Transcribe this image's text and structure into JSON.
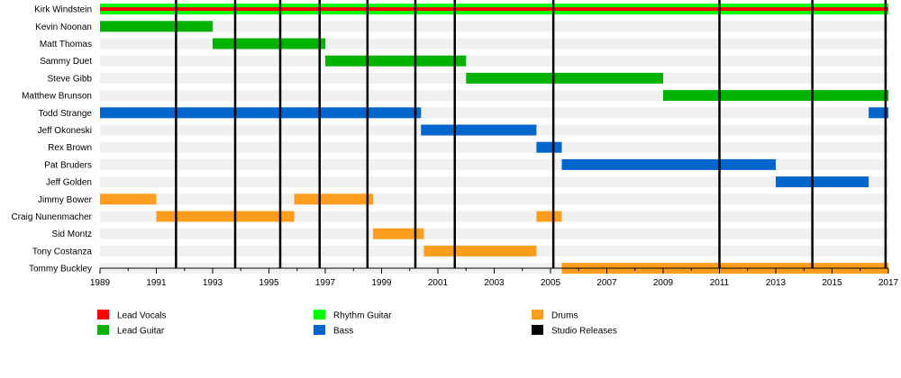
{
  "chart_data": {
    "type": "timeline",
    "x_range": [
      1989,
      2017
    ],
    "x_ticks": [
      "1989",
      "1991",
      "1993",
      "1995",
      "1997",
      "1999",
      "2001",
      "2003",
      "2005",
      "2007",
      "2009",
      "2011",
      "2013",
      "2015",
      "2017"
    ],
    "colors": {
      "Lead Vocals": "#ff0000",
      "Rhythm Guitar": "#00ff00",
      "Drums": "#ff9e1c",
      "Lead Guitar": "#00b300",
      "Bass": "#0066cc",
      "Studio Releases": "#000000"
    },
    "members": [
      {
        "name": "Kirk Windstein",
        "bars": [
          {
            "start": 1989,
            "end": 2017,
            "role": "Rhythm Guitar"
          },
          {
            "start": 1989,
            "end": 2017,
            "role": "Lead Vocals",
            "thin": true
          }
        ]
      },
      {
        "name": "Kevin Noonan",
        "bars": [
          {
            "start": 1989,
            "end": 1993,
            "role": "Lead Guitar"
          }
        ]
      },
      {
        "name": "Matt Thomas",
        "bars": [
          {
            "start": 1993,
            "end": 1997,
            "role": "Lead Guitar"
          }
        ]
      },
      {
        "name": "Sammy Duet",
        "bars": [
          {
            "start": 1997,
            "end": 2002,
            "role": "Lead Guitar"
          }
        ]
      },
      {
        "name": "Steve Gibb",
        "bars": [
          {
            "start": 2002,
            "end": 2009,
            "role": "Lead Guitar"
          }
        ]
      },
      {
        "name": "Matthew Brunson",
        "bars": [
          {
            "start": 2009,
            "end": 2017,
            "role": "Lead Guitar"
          }
        ]
      },
      {
        "name": "Todd Strange",
        "bars": [
          {
            "start": 1989,
            "end": 2000.4,
            "role": "Bass"
          },
          {
            "start": 2016.3,
            "end": 2017,
            "role": "Bass"
          }
        ]
      },
      {
        "name": "Jeff Okoneski",
        "bars": [
          {
            "start": 2000.4,
            "end": 2004.5,
            "role": "Bass"
          }
        ]
      },
      {
        "name": "Rex Brown",
        "bars": [
          {
            "start": 2004.5,
            "end": 2005.4,
            "role": "Bass"
          }
        ]
      },
      {
        "name": "Pat Bruders",
        "bars": [
          {
            "start": 2005.4,
            "end": 2013,
            "role": "Bass"
          }
        ]
      },
      {
        "name": "Jeff Golden",
        "bars": [
          {
            "start": 2013,
            "end": 2016.3,
            "role": "Bass"
          }
        ]
      },
      {
        "name": "Jimmy Bower",
        "bars": [
          {
            "start": 1989,
            "end": 1991,
            "role": "Drums"
          },
          {
            "start": 1995.9,
            "end": 1998.7,
            "role": "Drums"
          }
        ]
      },
      {
        "name": "Craig Nunenmacher",
        "bars": [
          {
            "start": 1991,
            "end": 1995.9,
            "role": "Drums"
          },
          {
            "start": 2004.5,
            "end": 2005.4,
            "role": "Drums"
          }
        ]
      },
      {
        "name": "Sid Montz",
        "bars": [
          {
            "start": 1998.7,
            "end": 2000.5,
            "role": "Drums"
          }
        ]
      },
      {
        "name": "Tony Costanza",
        "bars": [
          {
            "start": 2000.5,
            "end": 2004.5,
            "role": "Drums"
          }
        ]
      },
      {
        "name": "Tommy Buckley",
        "bars": [
          {
            "start": 2005.4,
            "end": 2017,
            "role": "Drums"
          }
        ]
      }
    ],
    "studio_releases": [
      1991.7,
      1993.8,
      1995.4,
      1996.8,
      1998.5,
      2000.2,
      2001.6,
      2005.1,
      2011.0,
      2014.3,
      2016.9
    ],
    "legend": [
      {
        "label": "Lead Vocals",
        "role": "Lead Vocals"
      },
      {
        "label": "Lead Guitar",
        "role": "Lead Guitar"
      },
      {
        "label": "Rhythm Guitar",
        "role": "Rhythm Guitar"
      },
      {
        "label": "Bass",
        "role": "Bass"
      },
      {
        "label": "Drums",
        "role": "Drums"
      },
      {
        "label": "Studio Releases",
        "role": "Studio Releases"
      }
    ]
  }
}
